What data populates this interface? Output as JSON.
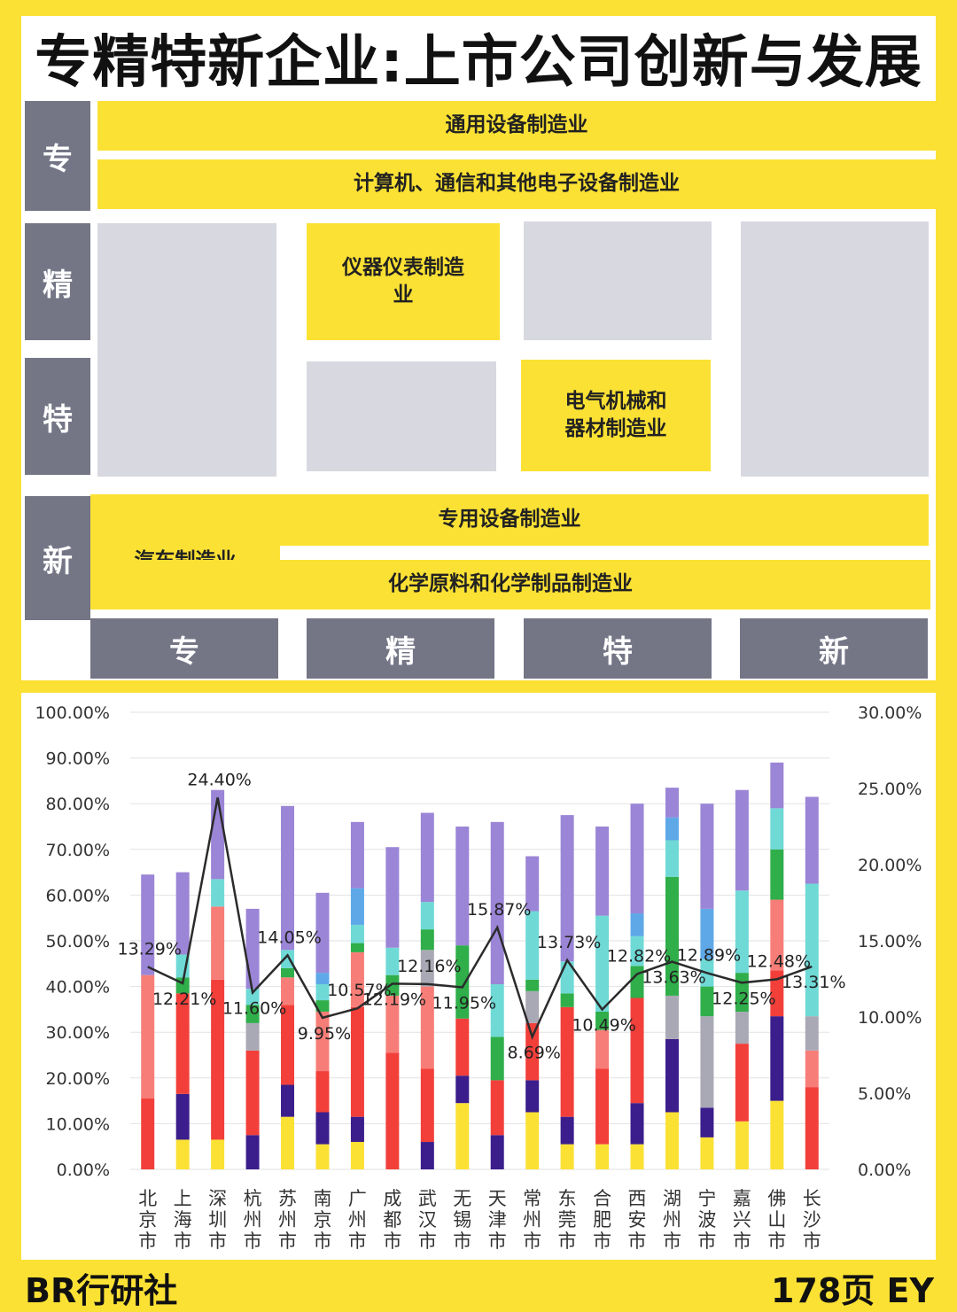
{
  "title": "专精特新企业:上市公司创新与发展",
  "matrix": {
    "row_labels": [
      "专",
      "精",
      "特",
      "新"
    ],
    "col_labels": [
      "专",
      "精",
      "特",
      "新"
    ],
    "industries": {
      "general_equipment": "通用设备制造业",
      "computer_electronics": "计算机、通信和其他电子设备制造业",
      "instruments": "仪器仪表制造业",
      "electrical": "电气机械和器材制造业",
      "special_equipment": "专用设备制造业",
      "automobile": "汽车制造业",
      "chemical": "化学原料和化学制品制造业"
    }
  },
  "chart_data": {
    "type": "bar",
    "stacked": true,
    "categories": [
      "北京市",
      "上海市",
      "深圳市",
      "杭州市",
      "苏州市",
      "南京市",
      "广州市",
      "成都市",
      "武汉市",
      "无锡市",
      "天津市",
      "常州市",
      "东莞市",
      "合肥市",
      "西安市",
      "湖州市",
      "宁波市",
      "嘉兴市",
      "佛山市",
      "长沙市"
    ],
    "ylim_left": [
      0,
      100
    ],
    "ylim_right": [
      0,
      30
    ],
    "left_ticks": [
      "0.00%",
      "10.00%",
      "20.00%",
      "30.00%",
      "40.00%",
      "50.00%",
      "60.00%",
      "70.00%",
      "80.00%",
      "90.00%",
      "100.00%"
    ],
    "right_ticks": [
      "0.00%",
      "5.00%",
      "10.00%",
      "15.00%",
      "20.00%",
      "25.00%",
      "30.00%"
    ],
    "grid": true,
    "segment_colors": [
      "#FBE134",
      "#3B1E8C",
      "#F23F3A",
      "#F77E78",
      "#A9A9B5",
      "#2FAE4A",
      "#6FD9D6",
      "#5EA8E8",
      "#9B85D6"
    ],
    "stacks": [
      [
        0,
        0,
        15.5,
        27,
        0,
        0,
        0,
        0,
        22
      ],
      [
        6.5,
        10,
        22,
        0,
        0,
        3.5,
        5,
        0,
        18
      ],
      [
        6.5,
        0,
        35,
        16,
        0,
        0,
        6,
        0,
        19.5
      ],
      [
        0,
        7.5,
        18.5,
        0,
        6,
        4,
        3.5,
        0,
        17.5
      ],
      [
        11.5,
        7,
        17.5,
        6,
        0,
        2,
        4,
        0,
        31.5
      ],
      [
        5.5,
        7,
        9,
        13,
        0,
        2.5,
        3.5,
        2.5,
        17.5
      ],
      [
        6,
        5.5,
        24,
        12,
        0,
        2,
        4,
        8,
        14.5
      ],
      [
        0,
        0,
        25.5,
        12.5,
        0,
        4.5,
        6,
        0,
        22
      ],
      [
        0,
        6,
        16,
        18,
        8,
        4.5,
        6,
        0,
        19.5
      ],
      [
        14.5,
        6,
        12.5,
        0,
        0,
        16,
        0,
        0,
        26
      ],
      [
        0,
        7.5,
        12,
        0,
        0,
        9.5,
        11.5,
        0,
        35.5
      ],
      [
        12.5,
        7,
        12.5,
        0,
        7,
        2.5,
        15,
        0,
        12
      ],
      [
        5.5,
        6,
        24,
        0,
        0,
        3,
        7,
        0,
        32
      ],
      [
        5.5,
        0,
        16.5,
        8.5,
        0,
        4,
        21,
        0,
        19.5
      ],
      [
        5.5,
        9,
        23,
        0,
        0,
        7,
        6.5,
        5,
        24
      ],
      [
        12.5,
        16,
        0,
        0,
        9.5,
        26,
        8,
        5,
        6.5
      ],
      [
        7,
        6.5,
        0,
        0,
        20,
        6.5,
        6,
        11,
        23
      ],
      [
        10.5,
        0,
        17,
        0,
        7,
        8.5,
        18,
        0,
        22
      ],
      [
        15,
        18.5,
        10,
        15.5,
        0,
        11,
        9,
        0,
        10
      ],
      [
        0,
        0,
        18,
        8,
        7.5,
        0,
        29,
        0,
        19
      ]
    ],
    "line_values": [
      13.29,
      12.21,
      24.4,
      11.6,
      14.05,
      9.95,
      10.57,
      12.19,
      12.16,
      11.95,
      15.87,
      8.69,
      13.73,
      10.49,
      12.82,
      13.63,
      12.89,
      12.25,
      12.48,
      13.31
    ],
    "line_labels": [
      "13.29%",
      "12.21%",
      "24.40%",
      "11.60%",
      "14.05%",
      "9.95%",
      "10.57%",
      "12.19%",
      "12.16%",
      "11.95%",
      "15.87%",
      "8.69%",
      "13.73%",
      "10.49%",
      "12.82%",
      "13.63%",
      "12.89%",
      "12.25%",
      "12.48%",
      "13.31%"
    ]
  },
  "footer": {
    "left": "BR行研社",
    "right": "178页 EY"
  }
}
